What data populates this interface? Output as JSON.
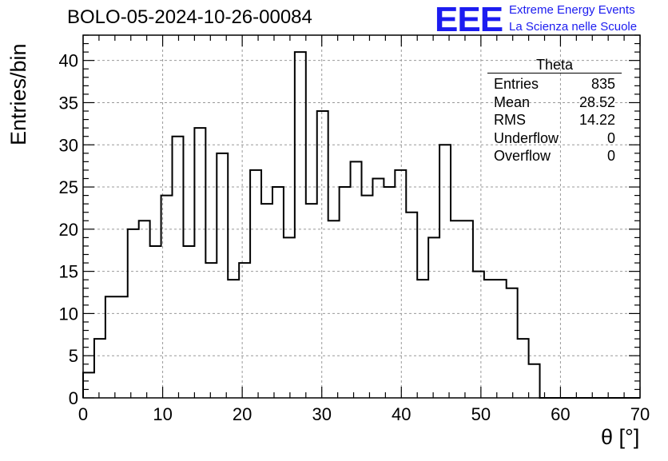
{
  "header": {
    "title": "BOLO-05-2024-10-26-00084",
    "logo_text": "EEE",
    "logo_line1": "Extreme Energy Events",
    "logo_line2": "La Scienza nelle Scuole"
  },
  "stats_box": {
    "name": "Theta",
    "rows": [
      {
        "label": "Entries",
        "value": "835"
      },
      {
        "label": "Mean",
        "value": "28.52"
      },
      {
        "label": "RMS",
        "value": "14.22"
      },
      {
        "label": "Underflow",
        "value": "0"
      },
      {
        "label": "Overflow",
        "value": "0"
      }
    ]
  },
  "chart_data": {
    "type": "bar",
    "style": "step-histogram",
    "xlabel": "θ [°]",
    "ylabel": "Entries/bin",
    "xlim": [
      0,
      70
    ],
    "ylim": [
      0,
      43
    ],
    "grid": true,
    "bin_edges_start": 0,
    "bin_width": 1.4,
    "xticks": [
      0,
      10,
      20,
      30,
      40,
      50,
      60,
      70
    ],
    "yticks": [
      0,
      5,
      10,
      15,
      20,
      25,
      30,
      35,
      40
    ],
    "values": [
      3,
      7,
      12,
      12,
      20,
      21,
      18,
      24,
      31,
      18,
      32,
      16,
      29,
      14,
      16,
      27,
      23,
      25,
      19,
      41,
      23,
      34,
      21,
      25,
      28,
      24,
      26,
      25,
      27,
      22,
      14,
      19,
      30,
      21,
      21,
      15,
      14,
      14,
      13,
      7,
      4,
      0,
      0,
      0,
      0,
      0,
      0,
      0,
      0,
      0
    ],
    "line_color": "#000000",
    "grid_color": "#999999"
  }
}
